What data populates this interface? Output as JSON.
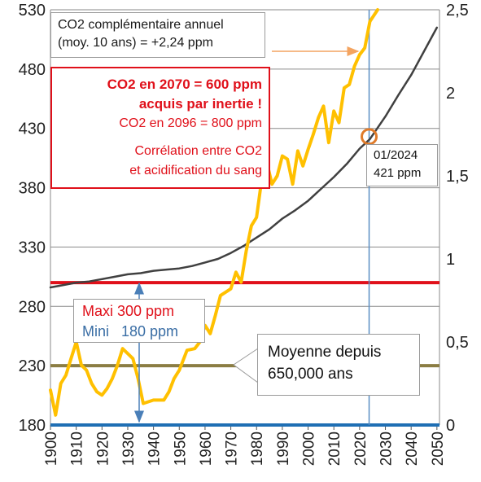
{
  "chart_data": {
    "type": "line",
    "title": "",
    "xlabel": "",
    "ylabel": "",
    "x_ticks": [
      "1900",
      "1910",
      "1920",
      "1930",
      "1940",
      "1950",
      "1960",
      "1970",
      "1980",
      "1990",
      "2000",
      "2010",
      "2020",
      "2030",
      "2040",
      "2050"
    ],
    "y_left_ticks": [
      "180",
      "230",
      "280",
      "330",
      "380",
      "430",
      "480",
      "530"
    ],
    "y_right_ticks": [
      "0",
      "0,5",
      "1",
      "1,5",
      "2",
      "2,5"
    ],
    "xlim": [
      1900,
      2051
    ],
    "ylim_left": [
      180,
      530
    ],
    "ylim_right": [
      0,
      2.5
    ],
    "grid": true,
    "series": [
      {
        "axis": "left",
        "color": "#404040",
        "x": [
          1900,
          1905,
          1910,
          1915,
          1920,
          1925,
          1930,
          1935,
          1940,
          1945,
          1950,
          1955,
          1960,
          1965,
          1970,
          1975,
          1980,
          1985,
          1990,
          1995,
          2000,
          2005,
          2010,
          2015,
          2020,
          2024,
          2030,
          2035,
          2040,
          2045,
          2050
        ],
        "values": [
          296,
          298,
          300,
          301,
          303,
          305,
          307,
          308,
          310,
          311,
          312,
          314,
          317,
          320,
          325,
          331,
          338,
          345,
          354,
          361,
          369,
          379,
          389,
          400,
          413,
          421,
          440,
          458,
          475,
          495,
          515
        ]
      },
      {
        "axis": "right",
        "color": "#ffc000",
        "x": [
          1900,
          1902,
          1904,
          1906,
          1908,
          1910,
          1912,
          1914,
          1916,
          1918,
          1920,
          1922,
          1924,
          1926,
          1928,
          1930,
          1932,
          1934,
          1936,
          1940,
          1944,
          1946,
          1948,
          1950,
          1953,
          1956,
          1958,
          1960,
          1962,
          1964,
          1966,
          1968,
          1970,
          1972,
          1974,
          1976,
          1978,
          1980,
          1982,
          1984,
          1986,
          1988,
          1990,
          1992,
          1994,
          1996,
          1998,
          2000,
          2002,
          2004,
          2006,
          2008,
          2010,
          2012,
          2014,
          2016,
          2018,
          2020,
          2022,
          2024,
          2027
        ],
        "values": [
          0.21,
          0.06,
          0.25,
          0.3,
          0.4,
          0.5,
          0.36,
          0.33,
          0.25,
          0.2,
          0.18,
          0.22,
          0.28,
          0.36,
          0.46,
          0.43,
          0.4,
          0.28,
          0.13,
          0.15,
          0.15,
          0.2,
          0.28,
          0.33,
          0.45,
          0.46,
          0.5,
          0.6,
          0.55,
          0.66,
          0.78,
          0.8,
          0.82,
          0.92,
          0.86,
          1.05,
          1.2,
          1.25,
          1.48,
          1.58,
          1.45,
          1.5,
          1.62,
          1.6,
          1.45,
          1.65,
          1.56,
          1.66,
          1.75,
          1.85,
          1.92,
          1.7,
          1.89,
          1.82,
          2.03,
          2.05,
          2.16,
          2.23,
          2.27,
          2.43,
          2.5
        ]
      }
    ],
    "reference_lines": [
      {
        "axis": "left",
        "y": 300,
        "color": "#e0101a"
      },
      {
        "axis": "left",
        "y": 230,
        "color": "#8b7d43"
      },
      {
        "axis": "left",
        "y": 180,
        "color": "#1f6fb4"
      }
    ],
    "marker": {
      "x": 2024,
      "y": 421,
      "color": "#e07b2a"
    },
    "annotations": {
      "annual": [
        "CO2 complémentaire annuel",
        "(moy. 10 ans) = +2,24 ppm"
      ],
      "inertia": [
        "CO2 en 2070 = 600 ppm",
        "acquis par inertie !",
        "CO2 en 2096 = 800 ppm",
        "Corrélation entre CO2",
        "et acidification du sang"
      ],
      "current": [
        "01/2024",
        "421 ppm"
      ],
      "range": [
        "Maxi 300 ppm",
        "Mini   180 ppm"
      ],
      "average": [
        "Moyenne depuis",
        "650,000 ans"
      ]
    },
    "colors": {
      "arrow_orange": "#f4a460",
      "arrow_blue": "#4a7fb8",
      "vertical_line": "#5b8ec4"
    }
  }
}
